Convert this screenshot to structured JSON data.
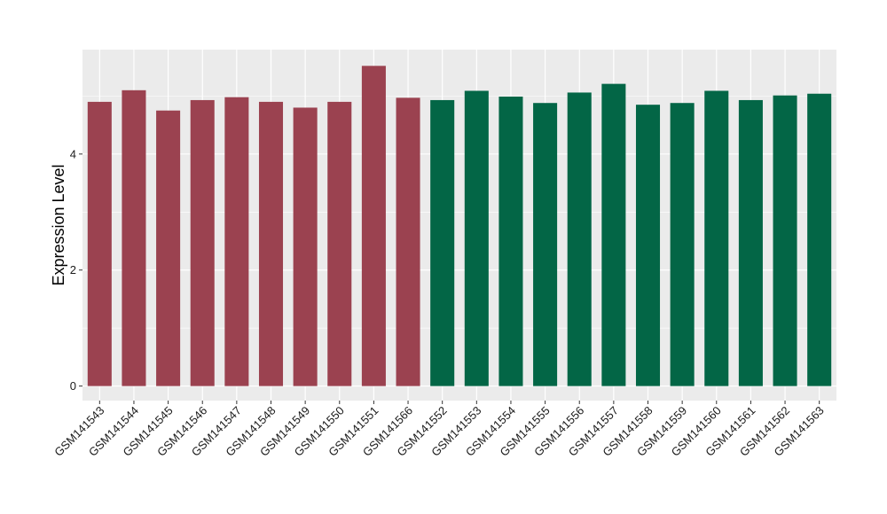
{
  "chart_data": {
    "type": "bar",
    "title": "",
    "xlabel": "",
    "ylabel": "Expression Level",
    "ylim": [
      -0.25,
      5.8
    ],
    "yticks": [
      0,
      2,
      4
    ],
    "grid": true,
    "legend": "none",
    "colors": {
      "group_a": "#9b4250",
      "group_b": "#036646",
      "panel_bg": "#ebebeb",
      "grid": "#ffffff"
    },
    "categories": [
      "GSM141543",
      "GSM141544",
      "GSM141545",
      "GSM141546",
      "GSM141547",
      "GSM141548",
      "GSM141549",
      "GSM141550",
      "GSM141551",
      "GSM141566",
      "GSM141552",
      "GSM141553",
      "GSM141554",
      "GSM141555",
      "GSM141556",
      "GSM141557",
      "GSM141558",
      "GSM141559",
      "GSM141560",
      "GSM141561",
      "GSM141562",
      "GSM141563"
    ],
    "values": [
      4.9,
      5.1,
      4.75,
      4.93,
      4.98,
      4.9,
      4.8,
      4.9,
      5.52,
      4.97,
      4.93,
      5.09,
      4.99,
      4.88,
      5.06,
      5.21,
      4.85,
      4.88,
      5.09,
      4.93,
      5.01,
      5.04
    ],
    "group": [
      "a",
      "a",
      "a",
      "a",
      "a",
      "a",
      "a",
      "a",
      "a",
      "a",
      "b",
      "b",
      "b",
      "b",
      "b",
      "b",
      "b",
      "b",
      "b",
      "b",
      "b",
      "b"
    ]
  }
}
